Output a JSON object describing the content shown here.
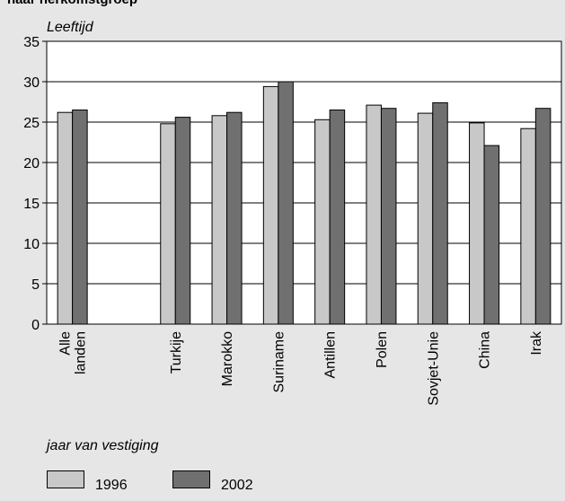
{
  "page": {
    "title": "naar herkomstgroep"
  },
  "chart_data": {
    "type": "bar",
    "title": "naar herkomstgroep",
    "ylabel": "Leeftijd",
    "xlabel": "",
    "ylim": [
      0,
      35
    ],
    "yticks": [
      0,
      5,
      10,
      15,
      20,
      25,
      30,
      35
    ],
    "grid": true,
    "categories": [
      "Alle landen",
      "",
      "Turkije",
      "Marokko",
      "Suriname",
      "Antillen",
      "Polen",
      "Sovjet-Unie",
      "China",
      "Irak"
    ],
    "category_lines": [
      [
        "Alle",
        "landen"
      ],
      [],
      [
        "Turkije"
      ],
      [
        "Marokko"
      ],
      [
        "Suriname"
      ],
      [
        "Antillen"
      ],
      [
        "Polen"
      ],
      [
        "Sovjet-Unie"
      ],
      [
        "China"
      ],
      [
        "Irak"
      ]
    ],
    "series": [
      {
        "name": "1996",
        "color": "#c8c8c8",
        "values": [
          26.2,
          null,
          24.8,
          25.8,
          29.4,
          25.3,
          27.1,
          26.1,
          24.9,
          24.2
        ]
      },
      {
        "name": "2002",
        "color": "#707070",
        "values": [
          26.5,
          null,
          25.6,
          26.2,
          30.0,
          26.5,
          26.7,
          27.4,
          22.1,
          26.7
        ]
      }
    ],
    "legend": {
      "title": "jaar van vestiging",
      "placement": "bottom-left"
    }
  }
}
